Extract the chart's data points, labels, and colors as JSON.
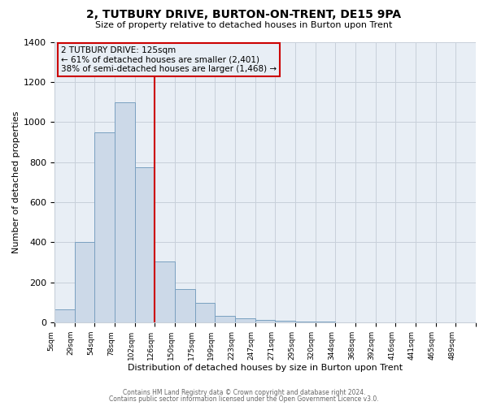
{
  "title": "2, TUTBURY DRIVE, BURTON-ON-TRENT, DE15 9PA",
  "subtitle": "Size of property relative to detached houses in Burton upon Trent",
  "xlabel": "Distribution of detached houses by size in Burton upon Trent",
  "ylabel": "Number of detached properties",
  "bin_labels": [
    "5sqm",
    "29sqm",
    "54sqm",
    "78sqm",
    "102sqm",
    "126sqm",
    "150sqm",
    "175sqm",
    "199sqm",
    "223sqm",
    "247sqm",
    "271sqm",
    "295sqm",
    "320sqm",
    "344sqm",
    "368sqm",
    "392sqm",
    "416sqm",
    "441sqm",
    "465sqm",
    "489sqm"
  ],
  "bar_heights": [
    65,
    400,
    950,
    1100,
    775,
    305,
    165,
    100,
    35,
    20,
    15,
    10,
    5,
    3,
    2,
    0,
    0,
    0,
    0,
    0,
    0
  ],
  "bar_color": "#ccd9e8",
  "bar_edge_color": "#7aa0c0",
  "vline_x_index": 5,
  "vline_color": "#cc0000",
  "annotation_line1": "2 TUTBURY DRIVE: 125sqm",
  "annotation_line2": "← 61% of detached houses are smaller (2,401)",
  "annotation_line3": "38% of semi-detached houses are larger (1,468) →",
  "annotation_box_color": "#cc0000",
  "ylim": [
    0,
    1400
  ],
  "yticks": [
    0,
    200,
    400,
    600,
    800,
    1000,
    1200,
    1400
  ],
  "footer_line1": "Contains HM Land Registry data © Crown copyright and database right 2024.",
  "footer_line2": "Contains public sector information licensed under the Open Government Licence v3.0.",
  "grid_color": "#c8d0da",
  "background_color": "#ffffff",
  "plot_bg_color": "#e8eef5"
}
